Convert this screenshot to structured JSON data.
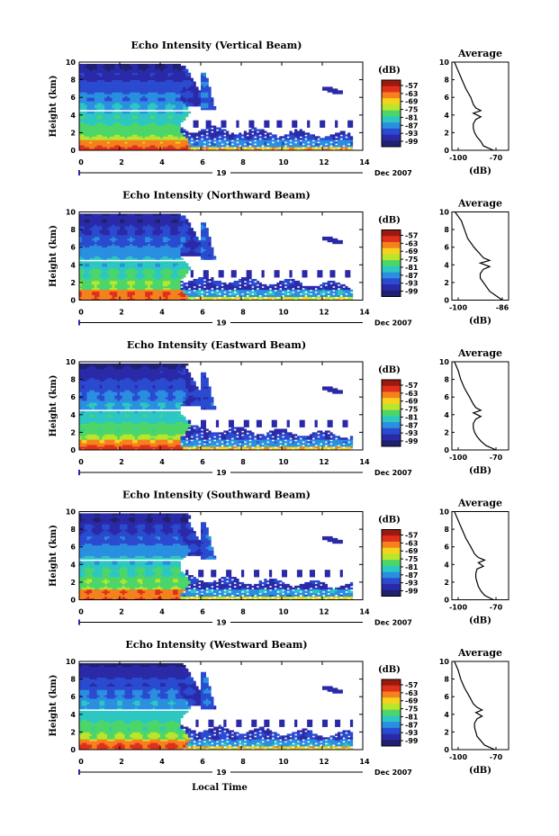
{
  "figure": {
    "bottom_xlabel": "Local Time",
    "date_label": "Dec 2007",
    "day_label": "19",
    "colorbar_unit": "(dB)",
    "colorbar_ticks": [
      "-57",
      "-63",
      "-69",
      "-75",
      "-81",
      "-87",
      "-93",
      "-99"
    ],
    "colorbar_colors": [
      "#9a1a10",
      "#e0301c",
      "#f5801e",
      "#f5d21e",
      "#b9e62a",
      "#4cd66a",
      "#2dc7c2",
      "#2a8fe0",
      "#2a4ad0",
      "#2a2aa8",
      "#202070"
    ],
    "average_title": "Average",
    "average_xlabel": "(dB)",
    "main_ylabel": "Height (km)"
  },
  "chart_data": [
    {
      "type": "heatmap",
      "title": "Echo Intensity (Vertical Beam)",
      "xlabel": "Local Time",
      "ylabel": "Height (km)",
      "xlim": [
        0,
        14
      ],
      "ylim": [
        0,
        10
      ],
      "xticks": [
        "0",
        "2",
        "4",
        "6",
        "8",
        "10",
        "12",
        "14"
      ],
      "yticks": [
        "0",
        "2",
        "4",
        "6",
        "8",
        "10"
      ],
      "colorbar_range": [
        -99,
        -57
      ],
      "profile": {
        "title": "Average",
        "xlabel": "(dB)",
        "xticks": [
          "-100",
          "-70"
        ],
        "xlim": [
          -105,
          -60
        ],
        "yticks": [
          "0",
          "2",
          "4",
          "6",
          "8",
          "10"
        ],
        "height": [
          0,
          0.5,
          1,
          1.5,
          2,
          2.5,
          3,
          3.5,
          3.8,
          4.2,
          4.5,
          4.8,
          5.2,
          6,
          7,
          8,
          9,
          10
        ],
        "db": [
          -72,
          -80,
          -82,
          -85,
          -87,
          -88,
          -88,
          -86,
          -82,
          -88,
          -82,
          -86,
          -88,
          -90,
          -94,
          -97,
          -100,
          -103
        ]
      }
    },
    {
      "type": "heatmap",
      "title": "Echo Intensity (Northward Beam)",
      "xlabel": "Local Time",
      "ylabel": "Height (km)",
      "xlim": [
        0,
        14
      ],
      "ylim": [
        0,
        10
      ],
      "xticks": [
        "0",
        "2",
        "4",
        "6",
        "8",
        "10",
        "12",
        "14"
      ],
      "yticks": [
        "0",
        "2",
        "4",
        "6",
        "8",
        "10"
      ],
      "colorbar_range": [
        -99,
        -57
      ],
      "profile": {
        "title": "Average",
        "xlabel": "(dB)",
        "xticks": [
          "-100",
          "-86"
        ],
        "xlim": [
          -102,
          -84
        ],
        "yticks": [
          "0",
          "2",
          "4",
          "6",
          "8",
          "10"
        ],
        "height": [
          0,
          0.5,
          1,
          1.5,
          2,
          2.5,
          3,
          3.5,
          3.8,
          4.2,
          4.5,
          4.8,
          5.2,
          6,
          7,
          8,
          9,
          10
        ],
        "db": [
          -86,
          -88,
          -90,
          -91,
          -92,
          -93,
          -93,
          -92,
          -90,
          -93,
          -90,
          -92,
          -93,
          -95,
          -97,
          -98,
          -99,
          -101
        ]
      }
    },
    {
      "type": "heatmap",
      "title": "Echo Intensity (Eastward Beam)",
      "xlabel": "Local Time",
      "ylabel": "Height (km)",
      "xlim": [
        0,
        14
      ],
      "ylim": [
        0,
        10
      ],
      "xticks": [
        "0",
        "2",
        "4",
        "6",
        "8",
        "10",
        "12",
        "14"
      ],
      "yticks": [
        "0",
        "2",
        "4",
        "6",
        "8",
        "10"
      ],
      "colorbar_range": [
        -99,
        -57
      ],
      "profile": {
        "title": "Average",
        "xlabel": "(dB)",
        "xticks": [
          "-100",
          "-70"
        ],
        "xlim": [
          -105,
          -60
        ],
        "yticks": [
          "0",
          "2",
          "4",
          "6",
          "8",
          "10"
        ],
        "height": [
          0,
          0.5,
          1,
          1.5,
          2,
          2.5,
          3,
          3.5,
          3.8,
          4.2,
          4.5,
          4.8,
          5.2,
          6,
          7,
          8,
          9,
          10
        ],
        "db": [
          -70,
          -78,
          -82,
          -85,
          -87,
          -88,
          -88,
          -86,
          -82,
          -88,
          -82,
          -86,
          -88,
          -91,
          -95,
          -98,
          -100,
          -103
        ]
      }
    },
    {
      "type": "heatmap",
      "title": "Echo Intensity (Southward Beam)",
      "xlabel": "Local Time",
      "ylabel": "Height (km)",
      "xlim": [
        0,
        14
      ],
      "ylim": [
        0,
        10
      ],
      "xticks": [
        "0",
        "2",
        "4",
        "6",
        "8",
        "10",
        "12",
        "14"
      ],
      "yticks": [
        "0",
        "2",
        "4",
        "6",
        "8",
        "10"
      ],
      "colorbar_range": [
        -99,
        -57
      ],
      "profile": {
        "title": "Average",
        "xlabel": "(dB)",
        "xticks": [
          "-100",
          "-70"
        ],
        "xlim": [
          -105,
          -60
        ],
        "yticks": [
          "0",
          "2",
          "4",
          "6",
          "8",
          "10"
        ],
        "height": [
          0,
          0.5,
          1,
          1.5,
          2,
          2.5,
          3,
          3.5,
          3.8,
          4.2,
          4.5,
          4.8,
          5.2,
          6,
          7,
          8,
          9,
          10
        ],
        "db": [
          -72,
          -79,
          -82,
          -84,
          -85,
          -86,
          -86,
          -85,
          -80,
          -84,
          -79,
          -84,
          -87,
          -90,
          -94,
          -97,
          -100,
          -103
        ]
      }
    },
    {
      "type": "heatmap",
      "title": "Echo Intensity (Westward Beam)",
      "xlabel": "Local Time",
      "ylabel": "Height (km)",
      "xlim": [
        0,
        14
      ],
      "ylim": [
        0,
        10
      ],
      "xticks": [
        "0",
        "2",
        "4",
        "6",
        "8",
        "10",
        "12",
        "14"
      ],
      "yticks": [
        "0",
        "2",
        "4",
        "6",
        "8",
        "10"
      ],
      "colorbar_range": [
        -99,
        -57
      ],
      "profile": {
        "title": "Average",
        "xlabel": "(dB)",
        "xticks": [
          "-100",
          "-70"
        ],
        "xlim": [
          -105,
          -60
        ],
        "yticks": [
          "0",
          "2",
          "4",
          "6",
          "8",
          "10"
        ],
        "height": [
          0,
          0.5,
          1,
          1.5,
          2,
          2.5,
          3,
          3.5,
          3.8,
          4.2,
          4.5,
          4.8,
          5.2,
          6,
          7,
          8,
          9,
          10
        ],
        "db": [
          -71,
          -79,
          -82,
          -85,
          -86,
          -87,
          -87,
          -85,
          -81,
          -86,
          -81,
          -85,
          -88,
          -91,
          -95,
          -98,
          -100,
          -103
        ]
      }
    }
  ]
}
